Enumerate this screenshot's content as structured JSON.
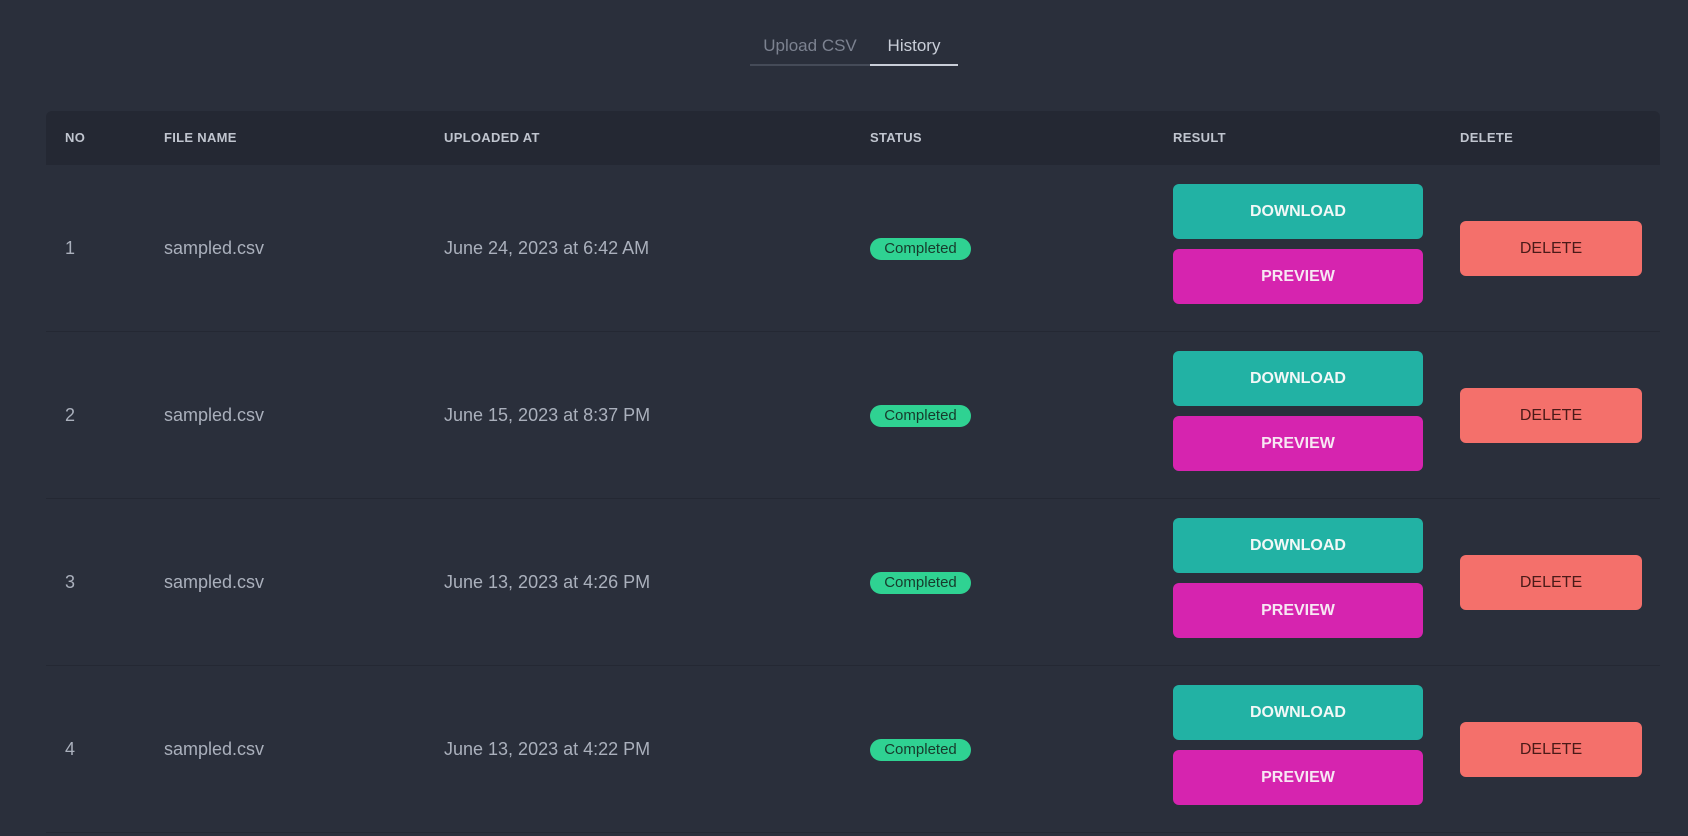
{
  "tabs": [
    {
      "label": "Upload CSV",
      "active": false
    },
    {
      "label": "History",
      "active": true
    }
  ],
  "table": {
    "headers": {
      "no": "NO",
      "file_name": "FILE NAME",
      "uploaded_at": "UPLOADED AT",
      "status": "STATUS",
      "result": "RESULT",
      "delete": "DELETE"
    },
    "rows": [
      {
        "no": "1",
        "file_name": "sampled.csv",
        "uploaded_at": "June 24, 2023 at 6:42 AM",
        "status": "Completed",
        "download": "DOWNLOAD",
        "preview": "PREVIEW",
        "delete": "DELETE"
      },
      {
        "no": "2",
        "file_name": "sampled.csv",
        "uploaded_at": "June 15, 2023 at 8:37 PM",
        "status": "Completed",
        "download": "DOWNLOAD",
        "preview": "PREVIEW",
        "delete": "DELETE"
      },
      {
        "no": "3",
        "file_name": "sampled.csv",
        "uploaded_at": "June 13, 2023 at 4:26 PM",
        "status": "Completed",
        "download": "DOWNLOAD",
        "preview": "PREVIEW",
        "delete": "DELETE"
      },
      {
        "no": "4",
        "file_name": "sampled.csv",
        "uploaded_at": "June 13, 2023 at 4:22 PM",
        "status": "Completed",
        "download": "DOWNLOAD",
        "preview": "PREVIEW",
        "delete": "DELETE"
      }
    ]
  },
  "colors": {
    "background": "#2a2f3b",
    "header_bg": "#242833",
    "download": "#22b2a4",
    "preview": "#d624af",
    "delete": "#f4706b",
    "status_completed": "#2fd292"
  }
}
